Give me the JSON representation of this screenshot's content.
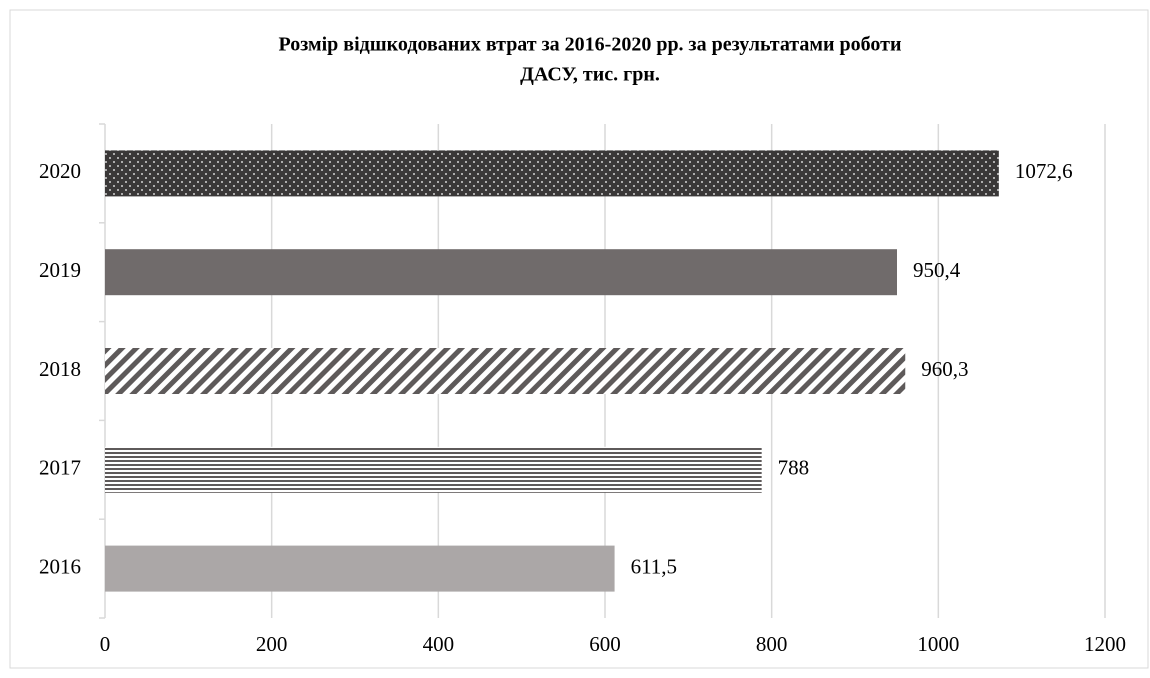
{
  "chart_data": {
    "type": "barh",
    "title": [
      "Розмір відшкодованих втрат за 2016-2020 рр. за результатами роботи",
      "ДАСУ, тис. грн."
    ],
    "categories": [
      "2016",
      "2017",
      "2018",
      "2019",
      "2020"
    ],
    "values": [
      611.5,
      788,
      960.3,
      950.4,
      1072.6
    ],
    "value_labels": [
      "611,5",
      "788",
      "960,3",
      "950,4",
      "1072,6"
    ],
    "colors": [
      "#aba7a7",
      "#5e5a5a",
      "#5e5a5a",
      "#706b6b",
      "#3a3838"
    ],
    "patterns": [
      "solid",
      "horizontal-lines",
      "diagonal-lines",
      "solid",
      "dots"
    ],
    "xlim": [
      0,
      1200
    ],
    "xticks": [
      0,
      200,
      400,
      600,
      800,
      1000,
      1200
    ],
    "grid": true
  }
}
